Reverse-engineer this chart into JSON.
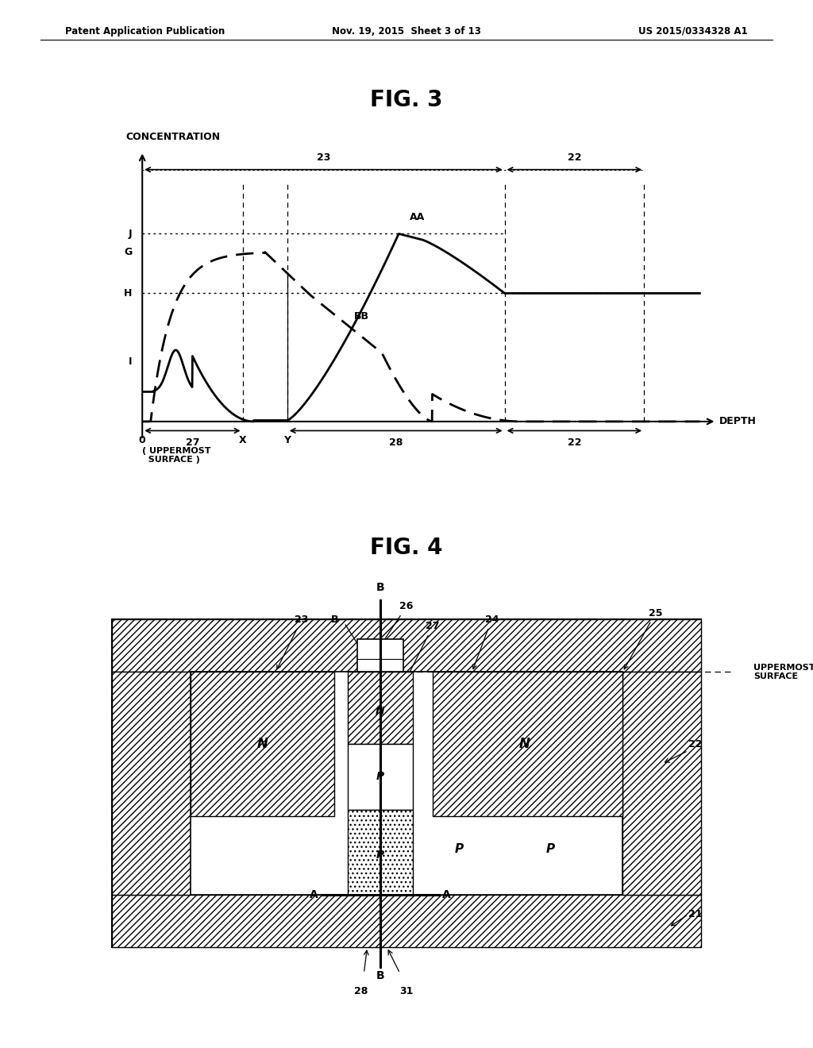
{
  "header_left": "Patent Application Publication",
  "header_center": "Nov. 19, 2015  Sheet 3 of 13",
  "header_right": "US 2015/0334328 A1",
  "fig3_title": "FIG. 3",
  "fig4_title": "FIG. 4",
  "bg_color": "#ffffff"
}
